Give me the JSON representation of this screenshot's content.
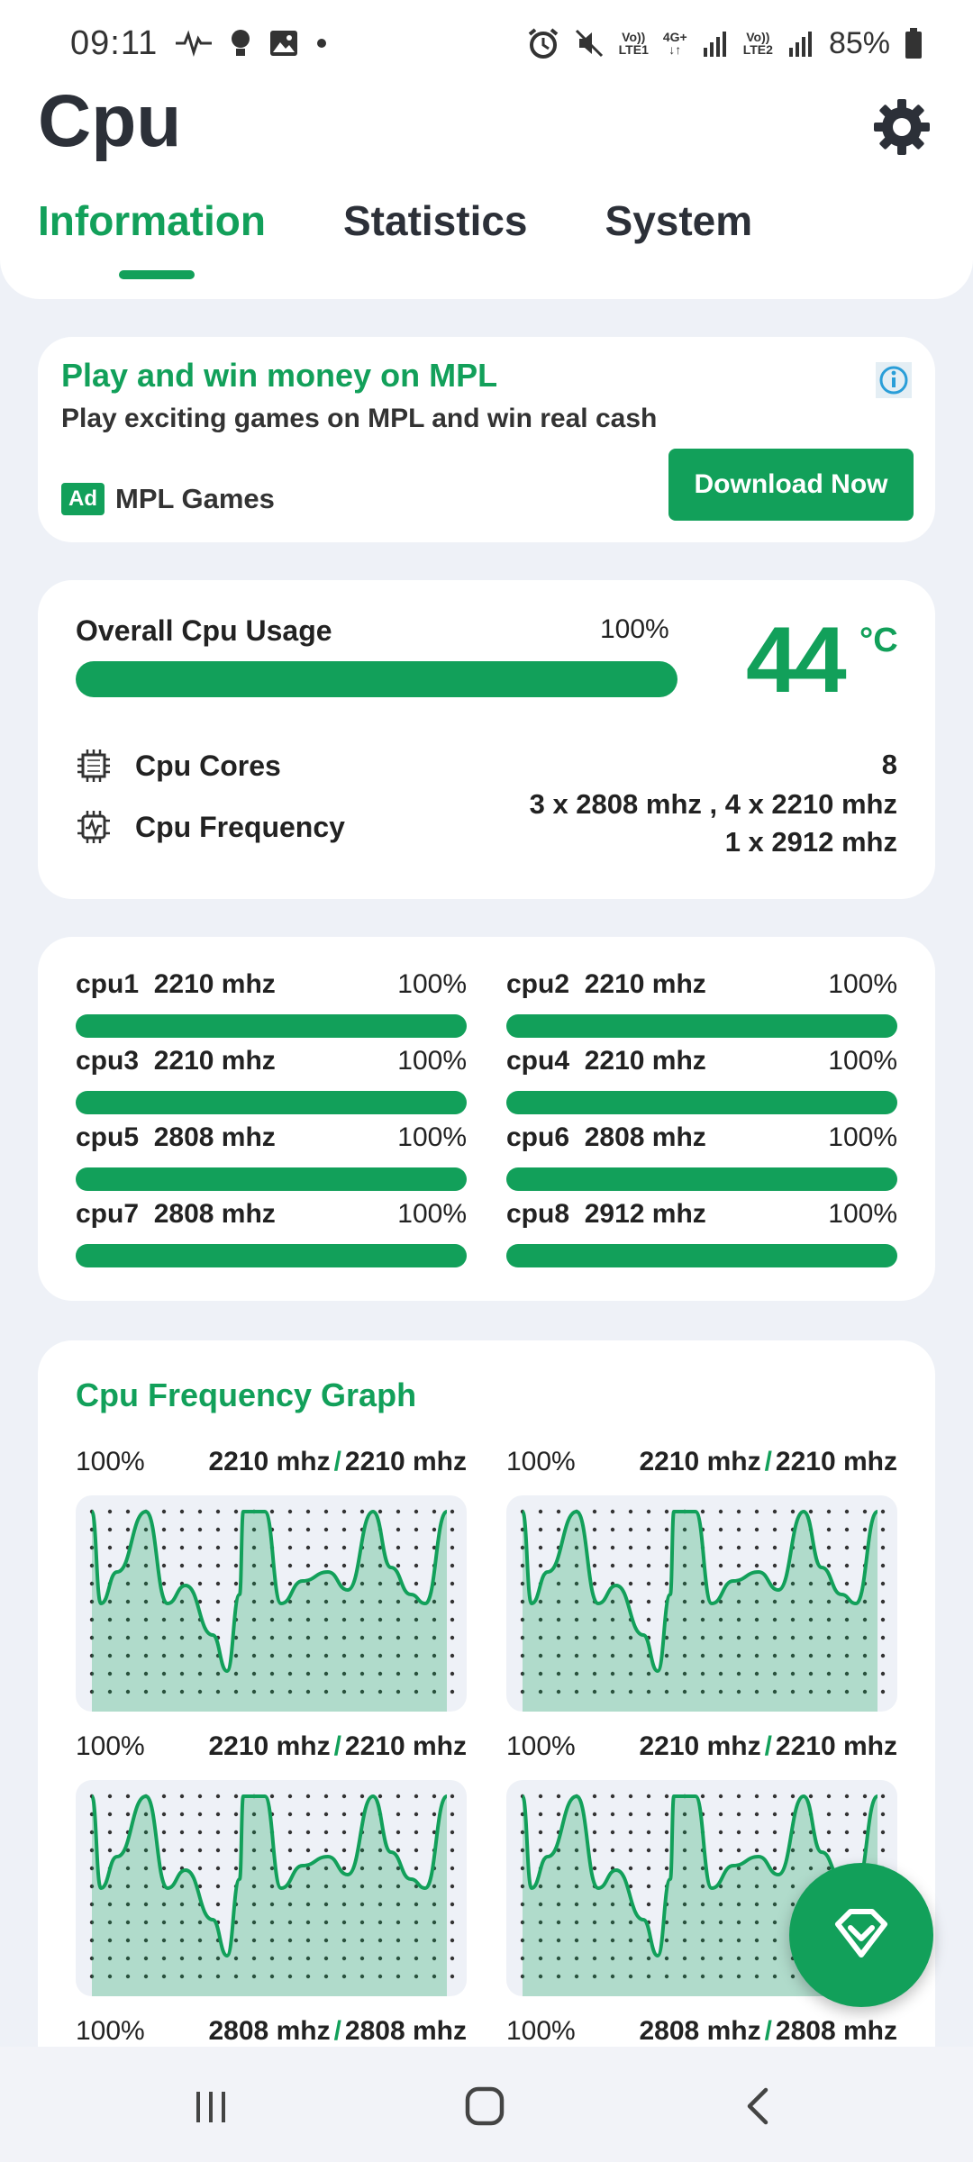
{
  "status_bar": {
    "time": "09:11",
    "battery": "85%",
    "sim1": "LTE1",
    "sim2": "LTE2",
    "net": "4G+"
  },
  "app": {
    "title": "Cpu"
  },
  "tabs": [
    {
      "label": "Information",
      "active": true
    },
    {
      "label": "Statistics",
      "active": false
    },
    {
      "label": "System",
      "active": false
    }
  ],
  "ad": {
    "title": "Play and win money on MPL",
    "text": "Play exciting games on MPL and win real cash",
    "badge": "Ad",
    "advertiser": "MPL Games",
    "button": "Download Now"
  },
  "overall": {
    "label": "Overall Cpu Usage",
    "percent": "100%",
    "usage_fraction": 1.0,
    "temperature": "44",
    "temperature_unit": "°C",
    "cores_label": "Cpu Cores",
    "cores_value": "8",
    "frequency_label": "Cpu Frequency",
    "frequency_line1": "3 x 2808 mhz , 4 x 2210 mhz",
    "frequency_line2": "1 x 2912 mhz"
  },
  "cores": [
    {
      "name": "cpu1",
      "freq": "2210 mhz",
      "percent": "100%",
      "usage": 1.0
    },
    {
      "name": "cpu2",
      "freq": "2210 mhz",
      "percent": "100%",
      "usage": 1.0
    },
    {
      "name": "cpu3",
      "freq": "2210 mhz",
      "percent": "100%",
      "usage": 1.0
    },
    {
      "name": "cpu4",
      "freq": "2210 mhz",
      "percent": "100%",
      "usage": 1.0
    },
    {
      "name": "cpu5",
      "freq": "2808 mhz",
      "percent": "100%",
      "usage": 1.0
    },
    {
      "name": "cpu6",
      "freq": "2808 mhz",
      "percent": "100%",
      "usage": 1.0
    },
    {
      "name": "cpu7",
      "freq": "2808 mhz",
      "percent": "100%",
      "usage": 1.0
    },
    {
      "name": "cpu8",
      "freq": "2912 mhz",
      "percent": "100%",
      "usage": 1.0
    }
  ],
  "graph": {
    "title": "Cpu Frequency Graph",
    "items": [
      {
        "percent": "100%",
        "current": "2210 mhz",
        "max": "2210 mhz"
      },
      {
        "percent": "100%",
        "current": "2210 mhz",
        "max": "2210 mhz"
      },
      {
        "percent": "100%",
        "current": "2210 mhz",
        "max": "2210 mhz"
      },
      {
        "percent": "100%",
        "current": "2210 mhz",
        "max": "2210 mhz"
      },
      {
        "percent": "100%",
        "current": "2808 mhz",
        "max": "2808 mhz"
      },
      {
        "percent": "100%",
        "current": "2808 mhz",
        "max": "2808 mhz"
      }
    ],
    "separator": "/"
  },
  "colors": {
    "accent": "#12a05a",
    "background": "#eef1f7"
  }
}
